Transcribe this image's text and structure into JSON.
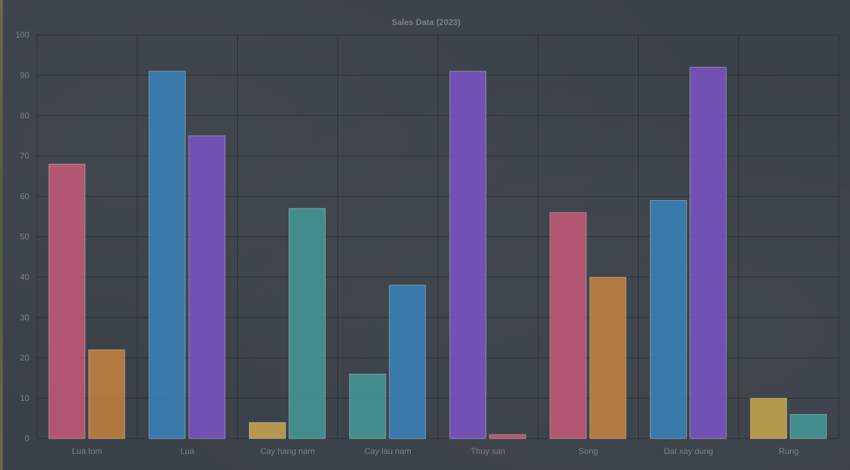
{
  "chart_data": {
    "type": "bar",
    "title": "Sales Data (2023)",
    "categories": [
      "Lua tom",
      "Lua",
      "Cay hang nam",
      "Cay lau nam",
      "Thuy san",
      "Song",
      "Dat xay dung",
      "Rung"
    ],
    "ylim": [
      0,
      100
    ],
    "yticks": [
      0,
      10,
      20,
      30,
      40,
      50,
      60,
      70,
      80,
      90,
      100
    ],
    "grid": true,
    "legend": "none",
    "bars": [
      {
        "category": "Lua tom",
        "value": 68,
        "color": "#c65a78"
      },
      {
        "category": "Lua tom",
        "value": 22,
        "color": "#c7843f"
      },
      {
        "category": "Lua",
        "value": 91,
        "color": "#3a84bb"
      },
      {
        "category": "Lua",
        "value": 75,
        "color": "#7a55c4"
      },
      {
        "category": "Cay hang nam",
        "value": 4,
        "color": "#c9a74f"
      },
      {
        "category": "Cay hang nam",
        "value": 57,
        "color": "#44999a"
      },
      {
        "category": "Cay lau nam",
        "value": 16,
        "color": "#44999a"
      },
      {
        "category": "Cay lau nam",
        "value": 38,
        "color": "#3a84bb"
      },
      {
        "category": "Thuy san",
        "value": 91,
        "color": "#7a55c4"
      },
      {
        "category": "Thuy san",
        "value": 1,
        "color": "#c65a78"
      },
      {
        "category": "Song",
        "value": 56,
        "color": "#c65a78"
      },
      {
        "category": "Song",
        "value": 40,
        "color": "#c7843f"
      },
      {
        "category": "Dat xay dung",
        "value": 59,
        "color": "#3a84bb"
      },
      {
        "category": "Dat xay dung",
        "value": 92,
        "color": "#7a55c4"
      },
      {
        "category": "Rung",
        "value": 10,
        "color": "#c9a74f"
      },
      {
        "category": "Rung",
        "value": 6,
        "color": "#44999a"
      }
    ]
  }
}
